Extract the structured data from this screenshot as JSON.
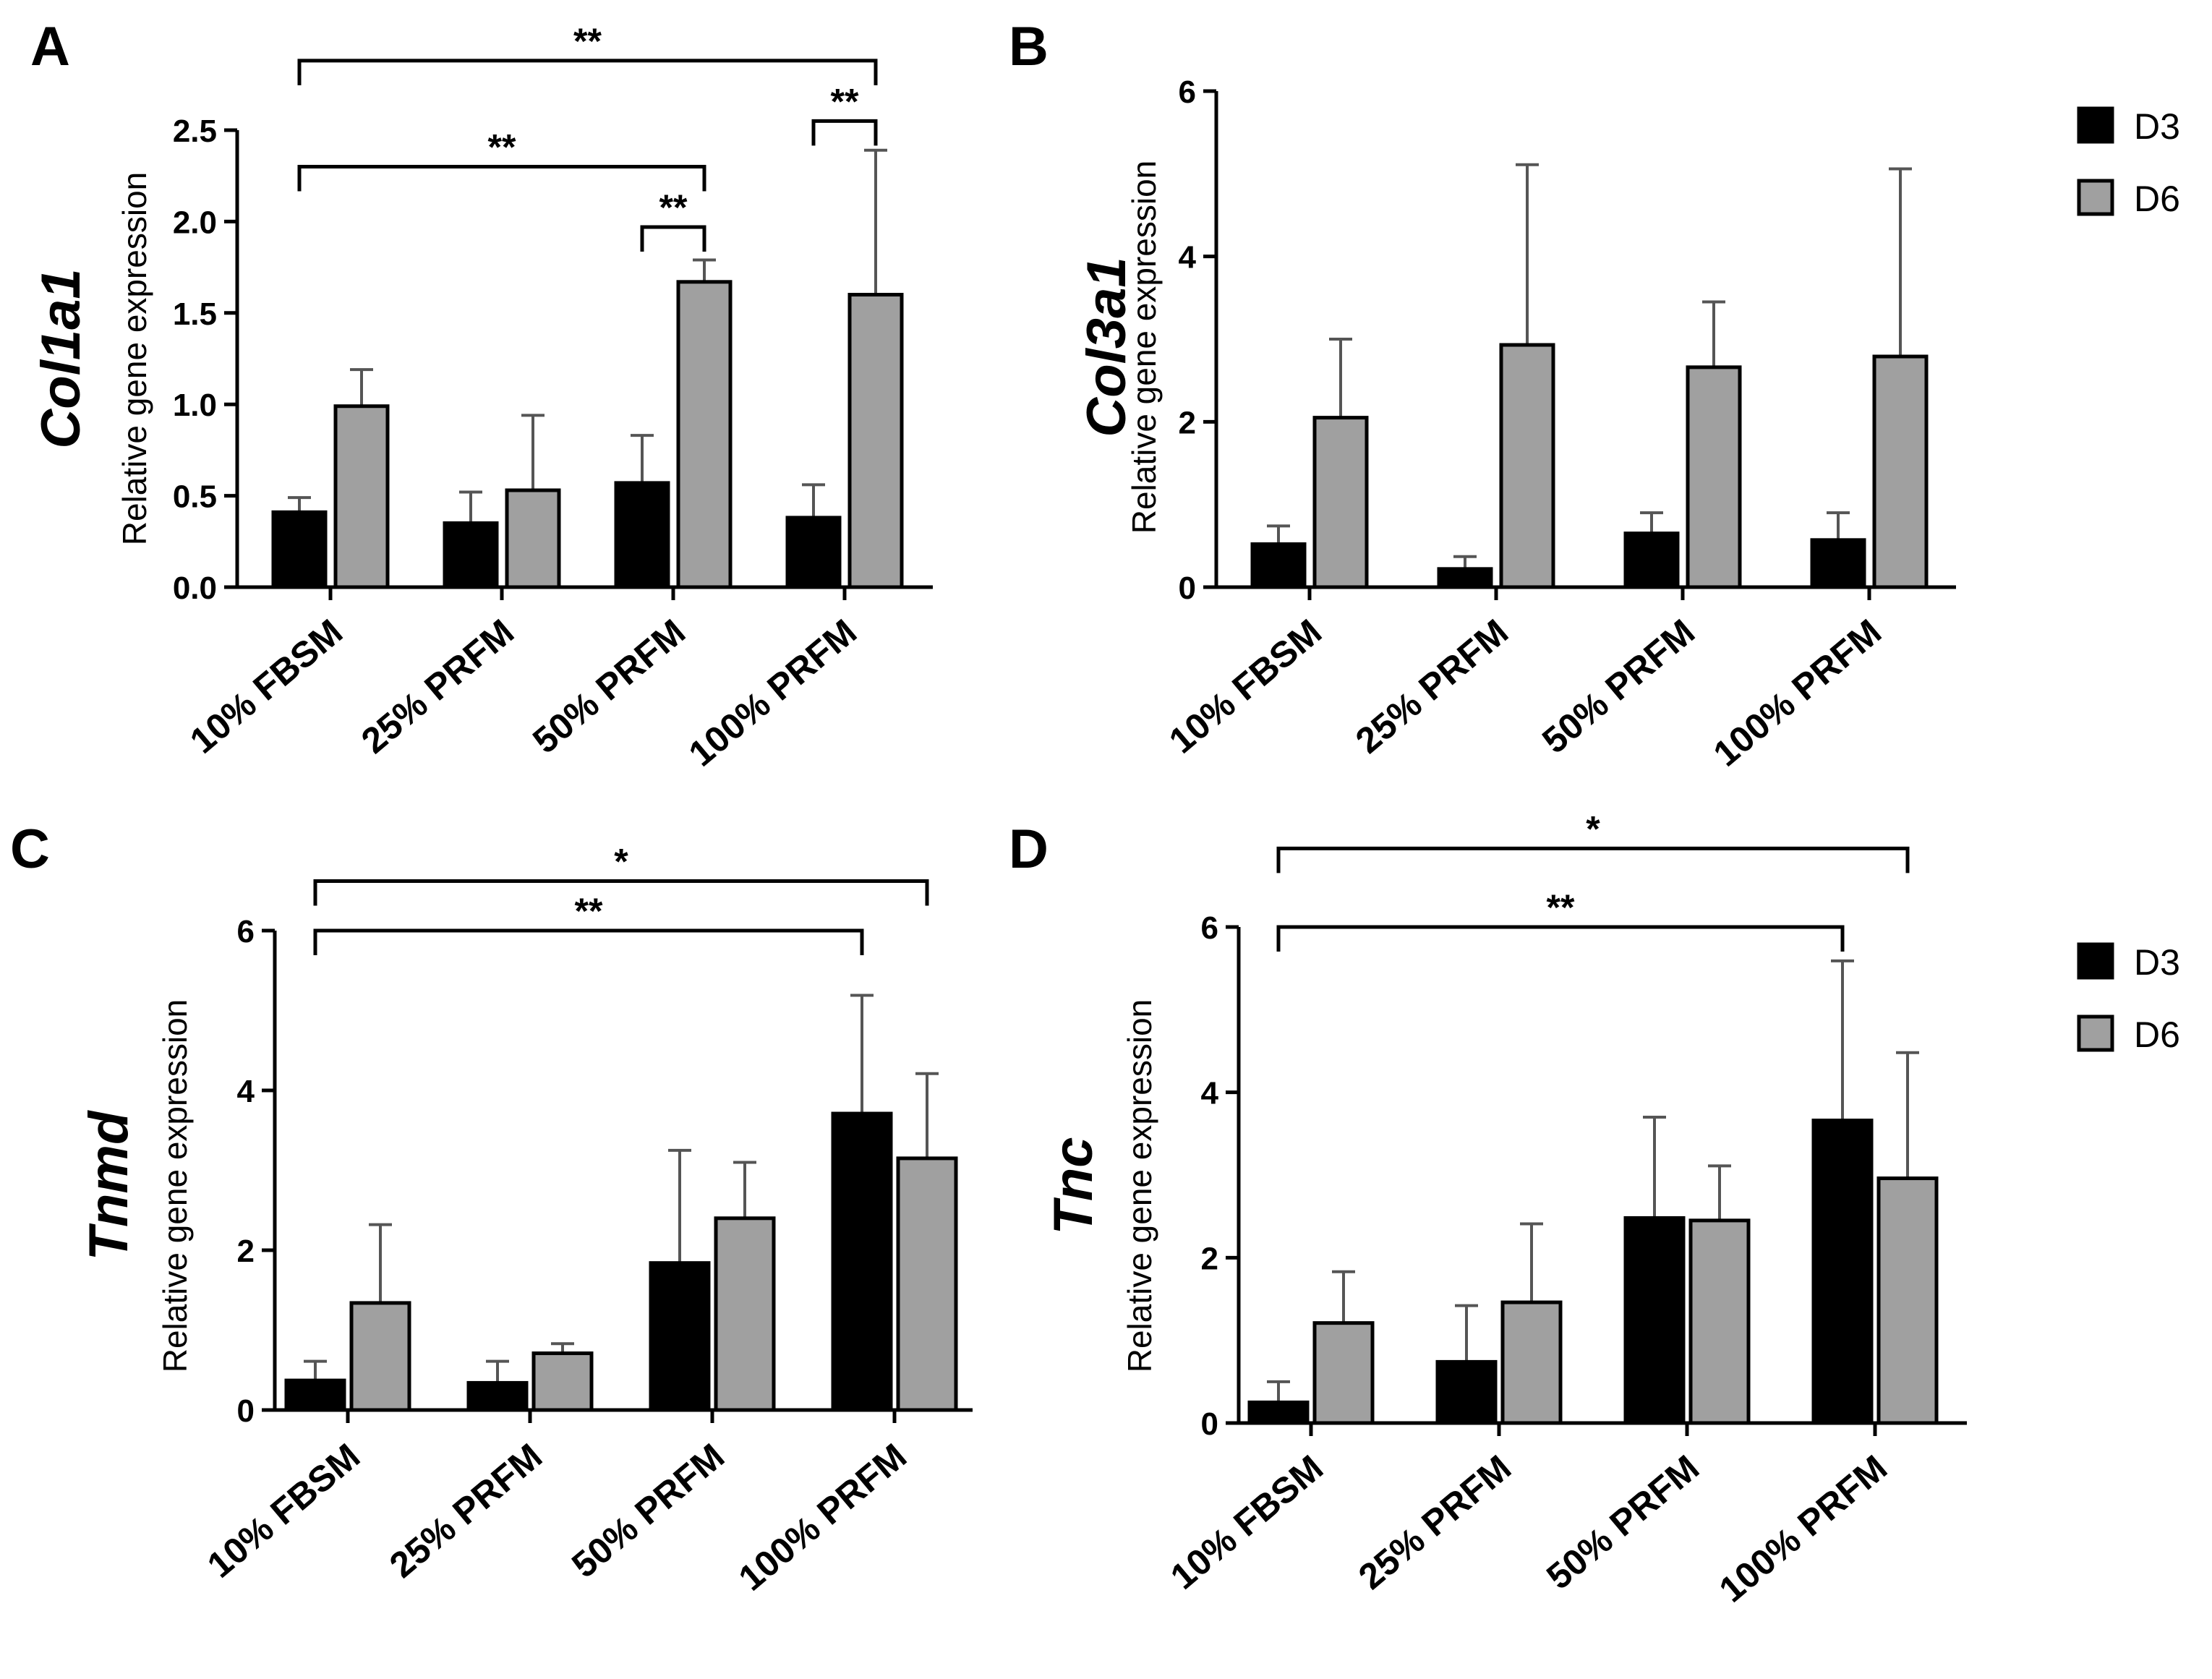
{
  "figure": {
    "legend": [
      {
        "name": "D3",
        "color": "#000000"
      },
      {
        "name": "D6",
        "color": "#a0a0a0"
      }
    ]
  },
  "chart_data": [
    {
      "panel": "A",
      "type": "bar",
      "gene": "Col1a1",
      "ylabel": "Relative gene expression",
      "ylim": [
        0,
        2.5
      ],
      "yticks": [
        "0.0",
        "0.5",
        "1.0",
        "1.5",
        "2.0",
        "2.5"
      ],
      "categories": [
        "10% FBSM",
        "25% PRFM",
        "50% PRFM",
        "100% PRFM"
      ],
      "series": [
        {
          "name": "D3",
          "values": [
            0.41,
            0.35,
            0.57,
            0.38
          ],
          "errors": [
            0.08,
            0.17,
            0.26,
            0.18
          ]
        },
        {
          "name": "D6",
          "values": [
            0.99,
            0.53,
            1.67,
            1.6
          ],
          "errors": [
            0.2,
            0.41,
            0.12,
            0.79
          ]
        }
      ],
      "significance": [
        {
          "from": [
            0,
            0
          ],
          "to": [
            3,
            1
          ],
          "label": "**",
          "level": 2.88
        },
        {
          "from": [
            0,
            0
          ],
          "to": [
            2,
            1
          ],
          "label": "**",
          "level": 2.3
        },
        {
          "from": [
            2,
            0
          ],
          "to": [
            2,
            1
          ],
          "label": "**",
          "level": 1.97
        },
        {
          "from": [
            3,
            0
          ],
          "to": [
            3,
            1
          ],
          "label": "**",
          "level": 2.55
        }
      ]
    },
    {
      "panel": "B",
      "type": "bar",
      "gene": "Col3a1",
      "ylabel": "Relative gene expression",
      "ylim": [
        0,
        6
      ],
      "yticks": [
        "0",
        "2",
        "4",
        "6"
      ],
      "categories": [
        "10% FBSM",
        "25% PRFM",
        "50% PRFM",
        "100% PRFM"
      ],
      "series": [
        {
          "name": "D3",
          "values": [
            0.52,
            0.22,
            0.65,
            0.57
          ],
          "errors": [
            0.22,
            0.15,
            0.25,
            0.33
          ]
        },
        {
          "name": "D6",
          "values": [
            2.05,
            2.93,
            2.66,
            2.79
          ],
          "errors": [
            0.95,
            2.18,
            0.79,
            2.27
          ]
        }
      ],
      "significance": []
    },
    {
      "panel": "C",
      "type": "bar",
      "gene": "Tnmd",
      "ylabel": "Relative gene expression",
      "ylim": [
        0,
        6
      ],
      "yticks": [
        "0",
        "2",
        "4",
        "6"
      ],
      "categories": [
        "10% FBSM",
        "25% PRFM",
        "50% PRFM",
        "100% PRFM"
      ],
      "series": [
        {
          "name": "D3",
          "values": [
            0.37,
            0.34,
            1.84,
            3.71
          ],
          "errors": [
            0.24,
            0.27,
            1.41,
            1.48
          ]
        },
        {
          "name": "D6",
          "values": [
            1.34,
            0.71,
            2.4,
            3.15
          ],
          "errors": [
            0.98,
            0.12,
            0.7,
            1.06
          ]
        }
      ],
      "significance": [
        {
          "from": [
            0,
            0
          ],
          "to": [
            3,
            1
          ],
          "label": "*",
          "level": 6.62
        },
        {
          "from": [
            0,
            0
          ],
          "to": [
            3,
            0
          ],
          "label": "**",
          "level": 6.0
        }
      ]
    },
    {
      "panel": "D",
      "type": "bar",
      "gene": "Tnc",
      "ylabel": "Relative gene expression",
      "ylim": [
        0,
        6
      ],
      "yticks": [
        "0",
        "2",
        "4",
        "6"
      ],
      "categories": [
        "10% FBSM",
        "25% PRFM",
        "50% PRFM",
        "100% PRFM"
      ],
      "series": [
        {
          "name": "D3",
          "values": [
            0.25,
            0.74,
            2.48,
            3.66
          ],
          "errors": [
            0.25,
            0.68,
            1.22,
            1.93
          ]
        },
        {
          "name": "D6",
          "values": [
            1.21,
            1.46,
            2.45,
            2.96
          ],
          "errors": [
            0.62,
            0.95,
            0.66,
            1.52
          ]
        }
      ],
      "significance": [
        {
          "from": [
            0,
            0
          ],
          "to": [
            3,
            1
          ],
          "label": "*",
          "level": 6.95
        },
        {
          "from": [
            0,
            0
          ],
          "to": [
            3,
            0
          ],
          "label": "**",
          "level": 6.0
        }
      ]
    }
  ]
}
